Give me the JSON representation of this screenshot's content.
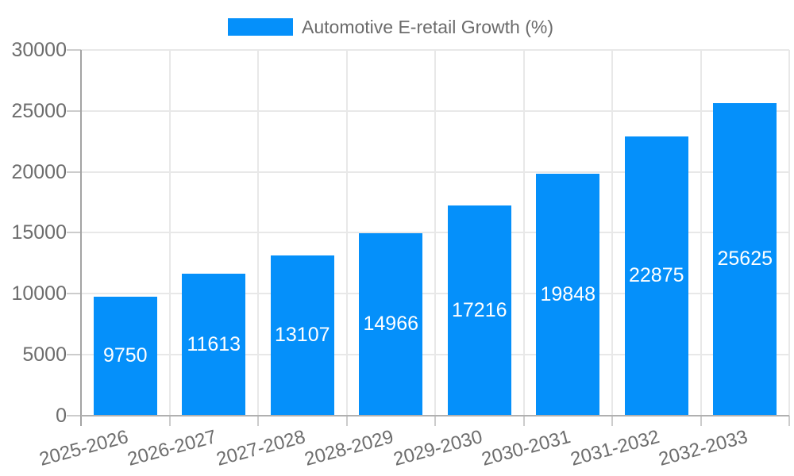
{
  "legend": {
    "label": "Automotive E-retail Growth (%)",
    "swatch_color": "#0590fa",
    "position": "top"
  },
  "chart_data": {
    "type": "bar",
    "title": "",
    "xlabel": "",
    "ylabel": "",
    "categories": [
      "2025-2026",
      "2026-2027",
      "2027-2028",
      "2028-2029",
      "2029-2030",
      "2030-2031",
      "2031-2032",
      "2032-2033"
    ],
    "series": [
      {
        "name": "Automotive E-retail Growth (%)",
        "values": [
          9750,
          11613,
          13107,
          14966,
          17216,
          19848,
          22875,
          25625
        ]
      }
    ],
    "bar_labels": [
      "9750",
      "11613",
      "13107",
      "14966",
      "17216",
      "19848",
      "22875",
      "25625"
    ],
    "ylim": [
      0,
      30000
    ],
    "ytick_interval": 5000,
    "yticks": [
      "0",
      "5000",
      "10000",
      "15000",
      "20000",
      "25000",
      "30000"
    ],
    "grid": true,
    "legend_position": "top",
    "x_label_rotation_deg": -15
  },
  "colors": {
    "bar": "#0590fa",
    "bar_label": "#ffffff",
    "axis_text": "#6d6d6d",
    "legend_text": "#6b6b6b",
    "gridline": "#e8e8e8",
    "axis_line": "#b0b0b0",
    "tick": "#cccccc",
    "background": "#ffffff"
  }
}
